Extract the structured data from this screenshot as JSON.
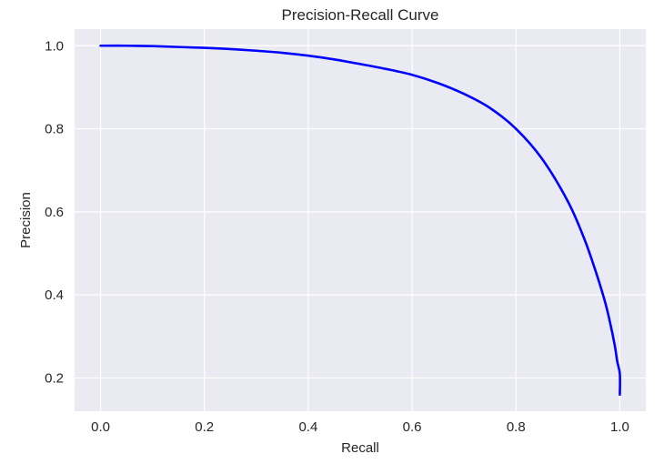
{
  "chart_data": {
    "type": "line",
    "title": "Precision-Recall Curve",
    "xlabel": "Recall",
    "ylabel": "Precision",
    "xlim": [
      -0.05,
      1.05
    ],
    "ylim": [
      0.12,
      1.04
    ],
    "xticks": [
      0.0,
      0.2,
      0.4,
      0.6,
      0.8,
      1.0
    ],
    "xtick_labels": [
      "0.0",
      "0.2",
      "0.4",
      "0.6",
      "0.8",
      "1.0"
    ],
    "yticks": [
      0.2,
      0.4,
      0.6,
      0.8,
      1.0
    ],
    "ytick_labels": [
      "0.2",
      "0.4",
      "0.6",
      "0.8",
      "1.0"
    ],
    "grid": true,
    "colors": {
      "background": "#eaeaf2",
      "grid": "#ffffff",
      "line": "#0000ff"
    },
    "series": [
      {
        "x": [
          0.0,
          0.05,
          0.1,
          0.15,
          0.2,
          0.25,
          0.3,
          0.35,
          0.4,
          0.45,
          0.5,
          0.55,
          0.6,
          0.65,
          0.7,
          0.75,
          0.8,
          0.85,
          0.9,
          0.93,
          0.95,
          0.97,
          0.98,
          0.99,
          0.995,
          1.0,
          1.0
        ],
        "y": [
          1.0,
          1.0,
          0.999,
          0.997,
          0.995,
          0.992,
          0.988,
          0.983,
          0.976,
          0.967,
          0.956,
          0.944,
          0.93,
          0.91,
          0.884,
          0.85,
          0.8,
          0.728,
          0.625,
          0.54,
          0.47,
          0.39,
          0.34,
          0.28,
          0.24,
          0.21,
          0.16
        ]
      }
    ]
  }
}
